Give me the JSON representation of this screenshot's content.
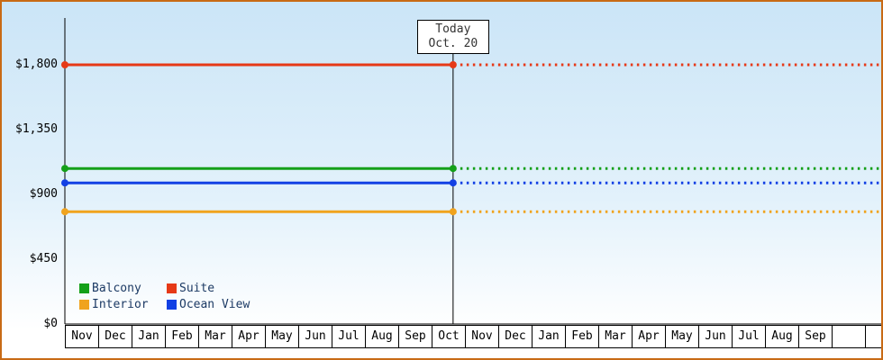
{
  "chart_data": {
    "type": "line",
    "title": "",
    "xlabel": "",
    "ylabel": "",
    "ylim": [
      0,
      1800
    ],
    "grid": false,
    "legend_position": "bottom-left",
    "y_ticks": [
      0,
      450,
      900,
      1350,
      1800
    ],
    "y_tick_labels": [
      "$0",
      "$450",
      "$900",
      "$1,350",
      "$1,800"
    ],
    "x_labels": [
      "Nov",
      "Dec",
      "Jan",
      "Feb",
      "Mar",
      "Apr",
      "May",
      "Jun",
      "Jul",
      "Aug",
      "Sep",
      "Oct",
      "Nov",
      "Dec",
      "Jan",
      "Feb",
      "Mar",
      "Apr",
      "May",
      "Jun",
      "Jul",
      "Aug",
      "Sep"
    ],
    "series": [
      {
        "name": "Suite",
        "value": 1800,
        "color": "#e63917",
        "style": "solid-then-dashed"
      },
      {
        "name": "Balcony",
        "value": 1080,
        "color": "#14a019",
        "style": "solid-then-dashed"
      },
      {
        "name": "Ocean View",
        "value": 980,
        "color": "#1240e4",
        "style": "solid-then-dashed"
      },
      {
        "name": "Interior",
        "value": 780,
        "color": "#f0a31e",
        "style": "solid-then-dashed"
      }
    ],
    "today_label": {
      "line1": "Today",
      "line2": "Oct. 20"
    },
    "today_position": {
      "month_index": 11,
      "day_fraction": 0.645
    },
    "legend": [
      {
        "label": "Balcony",
        "color": "#14a019"
      },
      {
        "label": "Suite",
        "color": "#e63917"
      },
      {
        "label": "Interior",
        "color": "#f0a31e"
      },
      {
        "label": "Ocean View",
        "color": "#1240e4"
      }
    ]
  },
  "colors": {
    "frame_border": "#c86a15",
    "background_top": "#cbe5f7",
    "background_bottom": "#ffffff",
    "axis": "#000000"
  }
}
